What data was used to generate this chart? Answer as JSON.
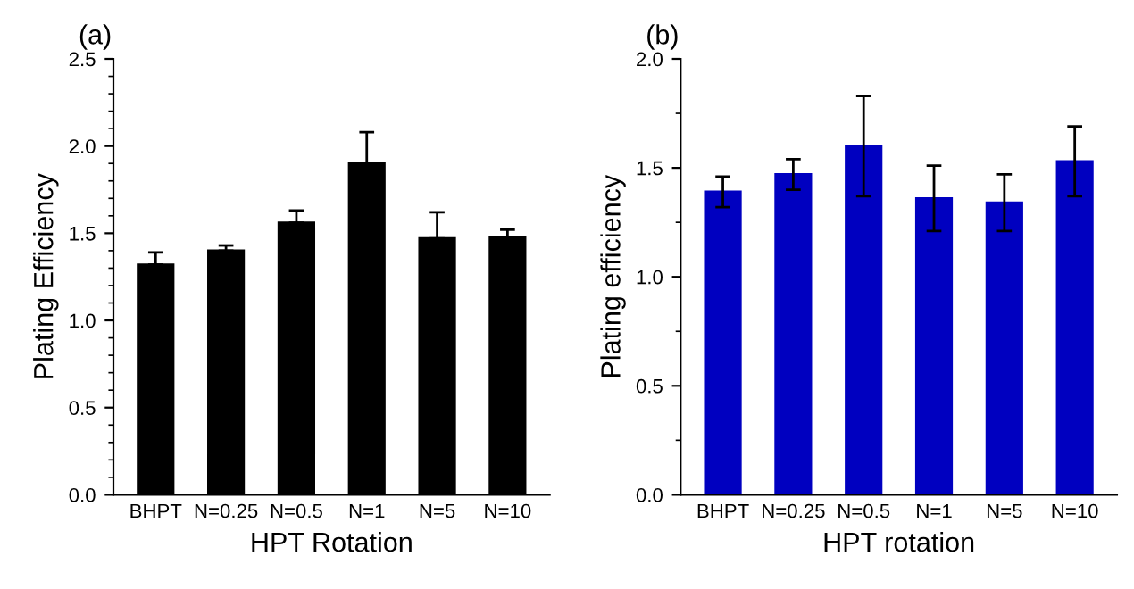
{
  "chart_data": [
    {
      "type": "bar",
      "title": "(a)",
      "xlabel": "HPT Rotation",
      "ylabel": "Plating Efficiency",
      "categories": [
        "BHPT",
        "N=0.25",
        "N=0.5",
        "N=1",
        "N=5",
        "N=10"
      ],
      "values": [
        1.32,
        1.4,
        1.56,
        1.9,
        1.47,
        1.48
      ],
      "color": "#000000",
      "errors": [
        [
          1.32,
          1.39
        ],
        [
          1.4,
          1.43
        ],
        [
          1.56,
          1.63
        ],
        [
          1.9,
          2.08
        ],
        [
          1.47,
          1.62
        ],
        [
          1.48,
          1.52
        ]
      ],
      "ylim": [
        0,
        2.5
      ],
      "yticks": [
        {
          "value": 0,
          "label": "0.0"
        },
        {
          "value": 0.5,
          "label": "0.5"
        },
        {
          "value": 1,
          "label": "1.0"
        },
        {
          "value": 1.5,
          "label": "1.5"
        },
        {
          "value": 2,
          "label": "2.0"
        },
        {
          "value": 2.5,
          "label": "2.5"
        }
      ],
      "grid": false,
      "legend": false
    },
    {
      "type": "bar",
      "title": "(b)",
      "xlabel": "HPT rotation",
      "ylabel": "Plating efficiency",
      "categories": [
        "BHPT",
        "N=0.25",
        "N=0.5",
        "N=1",
        "N=5",
        "N=10"
      ],
      "values": [
        1.39,
        1.47,
        1.6,
        1.36,
        1.34,
        1.53
      ],
      "color": "#0000c0",
      "errors": [
        0.07,
        0.07,
        0.23,
        0.15,
        0.13,
        0.16
      ],
      "ylim": [
        0,
        2.0
      ],
      "yticks": [
        {
          "value": 0,
          "label": "0.0"
        },
        {
          "value": 0.5,
          "label": "0.5"
        },
        {
          "value": 1,
          "label": "1.0"
        },
        {
          "value": 1.5,
          "label": "1.5"
        },
        {
          "value": 2,
          "label": "2.0"
        }
      ],
      "grid": false,
      "legend": false
    }
  ]
}
